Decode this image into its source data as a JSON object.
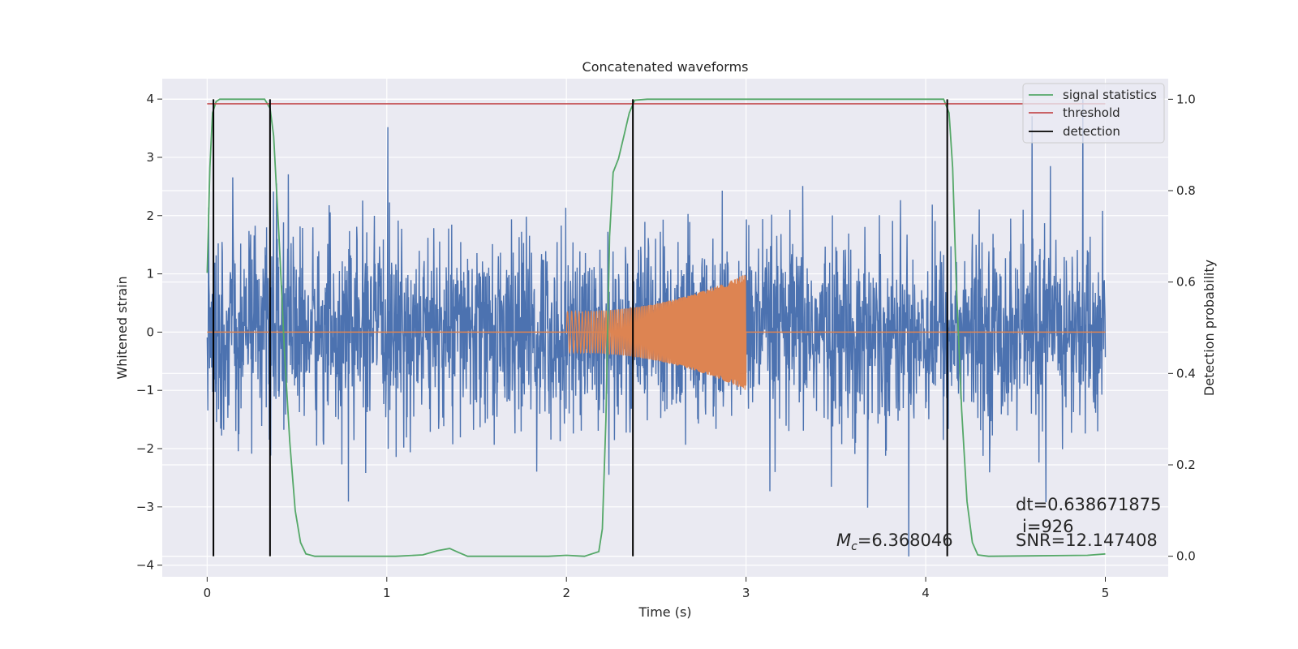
{
  "chart_data": {
    "type": "line",
    "title": "Concatenated waveforms",
    "xlabel": "Time (s)",
    "ylabel": "Whitened strain",
    "y2label": "Detection probability",
    "xlim": [
      -0.25,
      5.35
    ],
    "ylim": [
      -4.2,
      4.35
    ],
    "y2lim": [
      -0.045,
      1.045
    ],
    "xticks": [
      0,
      1,
      2,
      3,
      4,
      5
    ],
    "yticks": [
      -4,
      -3,
      -2,
      -1,
      0,
      1,
      2,
      3,
      4
    ],
    "y2ticks": [
      0.0,
      0.2,
      0.4,
      0.6,
      0.8,
      1.0
    ],
    "xtick_labels": [
      "0",
      "1",
      "2",
      "3",
      "4",
      "5"
    ],
    "ytick_labels": [
      "−4",
      "−3",
      "−2",
      "−1",
      "0",
      "1",
      "2",
      "3",
      "4"
    ],
    "y2tick_labels": [
      "0.0",
      "0.2",
      "0.4",
      "0.6",
      "0.8",
      "1.0"
    ],
    "grid": true,
    "legend_position": "top-right",
    "colors": {
      "background": "#eaeaf2",
      "noise": "#4c72b0",
      "chirp": "#dd8452",
      "signal_statistics": "#55a868",
      "threshold": "#c44e52",
      "detection": "#000000"
    },
    "noise": {
      "t_range": [
        0,
        5
      ],
      "typical_amplitude": 0.8,
      "max_y": 4.0,
      "min_y": -3.85
    },
    "chirp": {
      "t_start": 2.0,
      "t_end": 3.0,
      "amp_start": 0.35,
      "amp_end": 1.0,
      "zero_line_range": [
        0,
        5
      ]
    },
    "signal_statistics_points": [
      [
        0,
        0.62
      ],
      [
        0.015,
        0.85
      ],
      [
        0.03,
        0.97
      ],
      [
        0.05,
        0.995
      ],
      [
        0.07,
        1.0
      ],
      [
        0.32,
        1.0
      ],
      [
        0.35,
        0.98
      ],
      [
        0.37,
        0.92
      ],
      [
        0.4,
        0.7
      ],
      [
        0.43,
        0.45
      ],
      [
        0.46,
        0.25
      ],
      [
        0.49,
        0.1
      ],
      [
        0.52,
        0.03
      ],
      [
        0.55,
        0.005
      ],
      [
        0.6,
        0.0
      ],
      [
        0.9,
        0.0
      ],
      [
        1.05,
        0.0
      ],
      [
        1.2,
        0.003
      ],
      [
        1.28,
        0.012
      ],
      [
        1.35,
        0.017
      ],
      [
        1.4,
        0.008
      ],
      [
        1.45,
        0.0
      ],
      [
        1.9,
        0.0
      ],
      [
        2.0,
        0.002
      ],
      [
        2.1,
        0.0
      ],
      [
        2.18,
        0.01
      ],
      [
        2.2,
        0.06
      ],
      [
        2.22,
        0.3
      ],
      [
        2.24,
        0.7
      ],
      [
        2.26,
        0.84
      ],
      [
        2.29,
        0.87
      ],
      [
        2.32,
        0.92
      ],
      [
        2.35,
        0.97
      ],
      [
        2.38,
        0.998
      ],
      [
        2.45,
        1.0
      ],
      [
        4.1,
        1.0
      ],
      [
        4.13,
        0.97
      ],
      [
        4.15,
        0.85
      ],
      [
        4.17,
        0.6
      ],
      [
        4.2,
        0.32
      ],
      [
        4.23,
        0.12
      ],
      [
        4.26,
        0.03
      ],
      [
        4.29,
        0.003
      ],
      [
        4.35,
        0.0
      ],
      [
        4.9,
        0.002
      ],
      [
        5.0,
        0.005
      ]
    ],
    "threshold_value": 0.99,
    "detection_times": [
      0.035,
      0.35,
      2.37,
      4.12
    ],
    "legend": [
      "signal statistics",
      "threshold",
      "detection"
    ],
    "annotations": {
      "mc": "=6.368046",
      "mc_symbol": "M",
      "mc_subscript": "c",
      "dt": "dt=0.638671875",
      "i": "i=926",
      "snr": "SNR=12.147408"
    }
  }
}
